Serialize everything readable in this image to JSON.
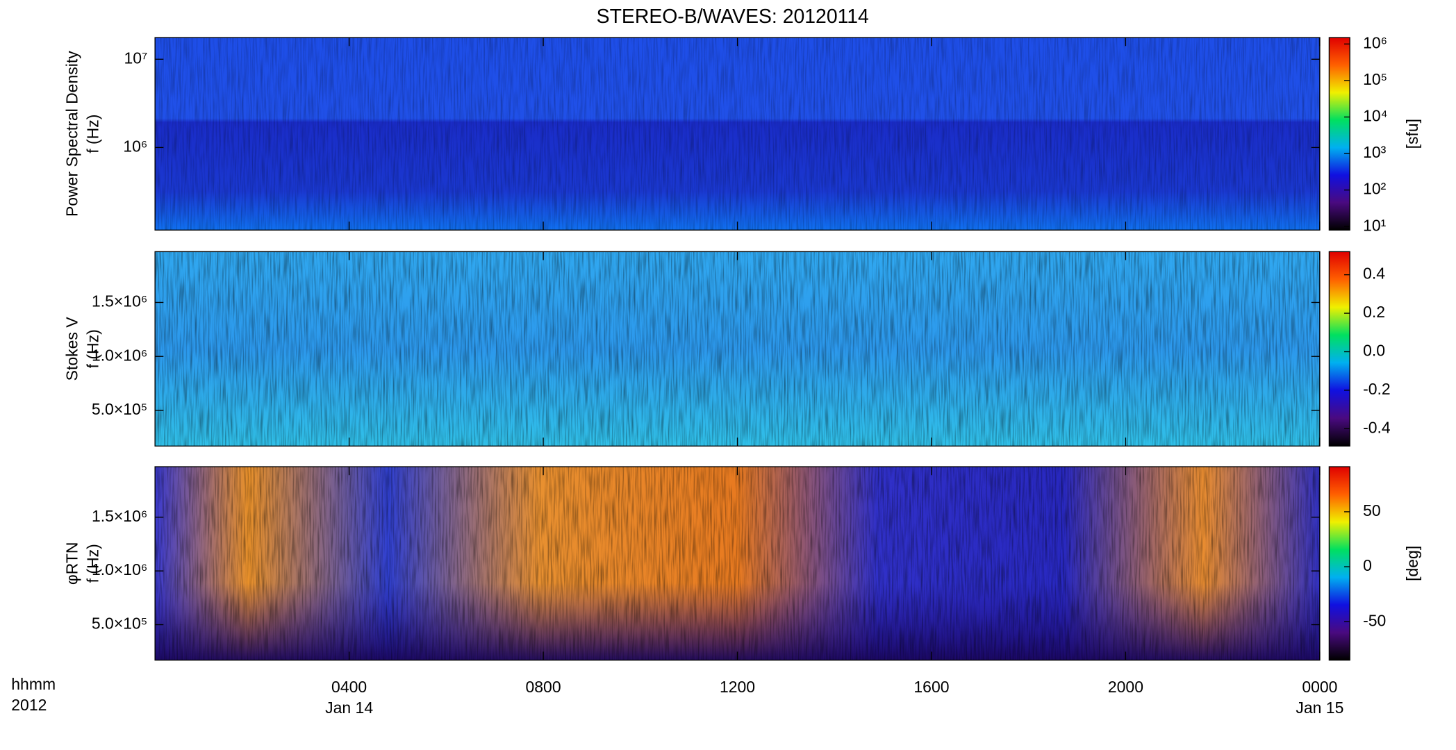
{
  "title": "STEREO-B/WAVES: 20120114",
  "colormap": [
    "#000000",
    "#4a0a80",
    "#1010e0",
    "#00b0f0",
    "#00e060",
    "#f0f000",
    "#ff6000",
    "#e00000"
  ],
  "chart_data": [
    {
      "type": "heatmap",
      "ylabel": [
        "Power Spectral Density",
        "f (Hz)"
      ],
      "yscale": "log",
      "ylim": [
        116000,
        17600000
      ],
      "yticks": [
        {
          "value": 1000000,
          "label": "10⁶"
        },
        {
          "value": 10000000,
          "label": "10⁷"
        }
      ],
      "xlim": [
        0,
        24
      ],
      "colorbar": {
        "scale": "log",
        "clim": [
          8,
          1500000
        ],
        "label": "[sfu]",
        "ticks": [
          {
            "value": 10,
            "label": "10¹"
          },
          {
            "value": 100,
            "label": "10²"
          },
          {
            "value": 1000,
            "label": "10³"
          },
          {
            "value": 10000,
            "label": "10⁴"
          },
          {
            "value": 100000,
            "label": "10⁵"
          },
          {
            "value": 1000000,
            "label": "10⁶"
          }
        ]
      }
    },
    {
      "type": "heatmap",
      "ylabel": [
        "Stokes V",
        "f (Hz)"
      ],
      "yscale": "linear",
      "ylim": [
        170000,
        1970000
      ],
      "yticks": [
        {
          "value": 500000,
          "label": "5.0×10⁵"
        },
        {
          "value": 1000000,
          "label": "1.0×10⁶"
        },
        {
          "value": 1500000,
          "label": "1.5×10⁶"
        }
      ],
      "xlim": [
        0,
        24
      ],
      "colorbar": {
        "scale": "linear",
        "clim": [
          -0.49,
          0.52
        ],
        "ticks": [
          -0.4,
          -0.2,
          {
            "value": 0,
            "label": "0.0"
          },
          0.2,
          0.4
        ]
      }
    },
    {
      "type": "heatmap",
      "ylabel": [
        "φRTN",
        "f (Hz)"
      ],
      "yscale": "linear",
      "ylim": [
        170000,
        1970000
      ],
      "yticks": [
        {
          "value": 500000,
          "label": "5.0×10⁵"
        },
        {
          "value": 1000000,
          "label": "1.0×10⁶"
        },
        {
          "value": 1500000,
          "label": "1.5×10⁶"
        }
      ],
      "xlim": [
        0,
        24
      ],
      "xticks": [
        {
          "value": 4,
          "label": "0400"
        },
        {
          "value": 8,
          "label": "0800"
        },
        {
          "value": 12,
          "label": "1200"
        },
        {
          "value": 16,
          "label": "1600"
        },
        {
          "value": 20,
          "label": "2000"
        },
        {
          "value": 24,
          "label": "0000"
        }
      ],
      "xdate_labels": [
        {
          "value": 4,
          "label": "Jan 14"
        },
        {
          "value": 24,
          "label": "Jan 15"
        }
      ],
      "xlabel": [
        "hhmm",
        "2012"
      ],
      "colorbar": {
        "scale": "linear",
        "clim": [
          -85,
          91
        ],
        "label": "[deg]",
        "ticks": [
          -50,
          0,
          50
        ]
      }
    }
  ]
}
